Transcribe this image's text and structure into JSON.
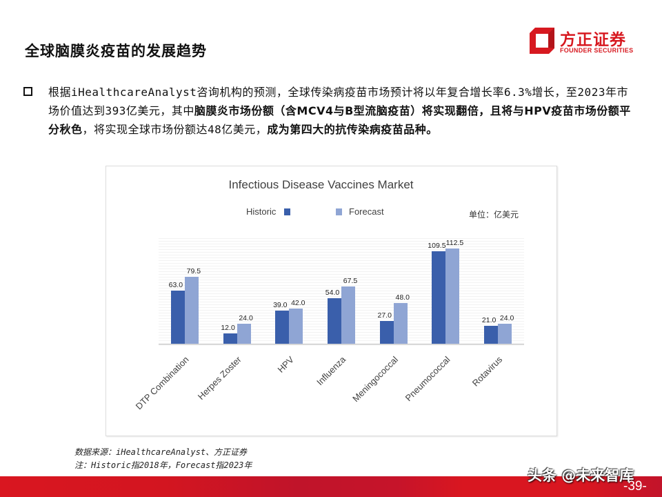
{
  "header": {
    "title": "全球脑膜炎疫苗的发展趋势",
    "logo": {
      "cn": "方正证券",
      "en": "FOUNDER SECURITIES",
      "color": "#d71920"
    }
  },
  "bullet": {
    "icon": "square-bullet-icon",
    "segments": [
      {
        "text": "根据iHealthcareAnalyst咨询机构的预测，全球传染病疫苗市场预计将以年复合增长率6.3%增长，至2023年市场价值达到393亿美元，其中",
        "bold": false
      },
      {
        "text": "脑膜炎市场份额（含MCV4与B型流脑疫苗）将实现翻倍，且将与HPV疫苗市场份额平分秋色",
        "bold": true
      },
      {
        "text": "，将实现全球市场份额达48亿美元，",
        "bold": false
      },
      {
        "text": "成为第四大的抗传染病疫苗品种。",
        "bold": true
      }
    ]
  },
  "chart": {
    "unit": "单位：亿美元",
    "legend": [
      {
        "label": "Historic",
        "color": "#3a5fab"
      },
      {
        "label": "Forecast",
        "color": "#8fa5d4"
      }
    ]
  },
  "chart_data": {
    "type": "bar",
    "title": "Infectious Disease Vaccines Market",
    "categories": [
      "DTP Combination",
      "Herpes Zoster",
      "HPV",
      "Influenza",
      "Meningococcal",
      "Pneumococcal",
      "Rotavirus"
    ],
    "series": [
      {
        "name": "Historic",
        "values": [
          63.0,
          12.0,
          39.0,
          54.0,
          27.0,
          109.5,
          21.0
        ],
        "color": "#3a5fab"
      },
      {
        "name": "Forecast",
        "values": [
          79.5,
          24.0,
          42.0,
          67.5,
          48.0,
          112.5,
          24.0
        ],
        "color": "#8fa5d4"
      }
    ],
    "xlabel": "",
    "ylabel": "亿美元",
    "ylim": [
      0,
      125
    ],
    "legend_position": "top",
    "grid": true,
    "data_labels": true
  },
  "footer": {
    "source": "数据来源：iHealthcareAnalyst、方正证券",
    "note": "注：Historic指2018年，Forecast指2023年",
    "watermark": "头条 @未来智库",
    "page_number": "-39-"
  }
}
